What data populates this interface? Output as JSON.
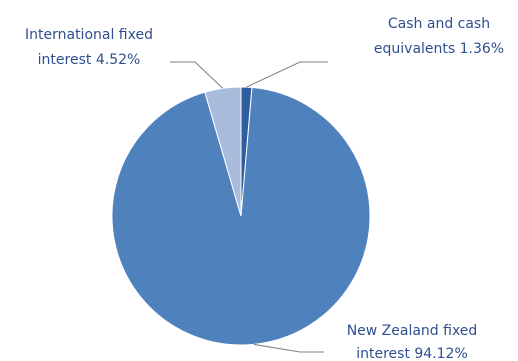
{
  "chart_data": {
    "type": "pie",
    "title": "",
    "slices": [
      {
        "name": "Cash and cash equivalents",
        "value": 1.36,
        "label_lines": [
          "Cash and cash",
          "equivalents 1.36%"
        ],
        "color": "#2e5e9e"
      },
      {
        "name": "New Zealand fixed interest",
        "value": 94.12,
        "label_lines": [
          "New Zealand fixed",
          "interest 94.12%"
        ],
        "color": "#4f81bd"
      },
      {
        "name": "International fixed interest",
        "value": 4.52,
        "label_lines": [
          "International fixed",
          "interest 4.52%"
        ],
        "color": "#a9bcdc"
      }
    ],
    "unit": "%",
    "legend": "none"
  }
}
